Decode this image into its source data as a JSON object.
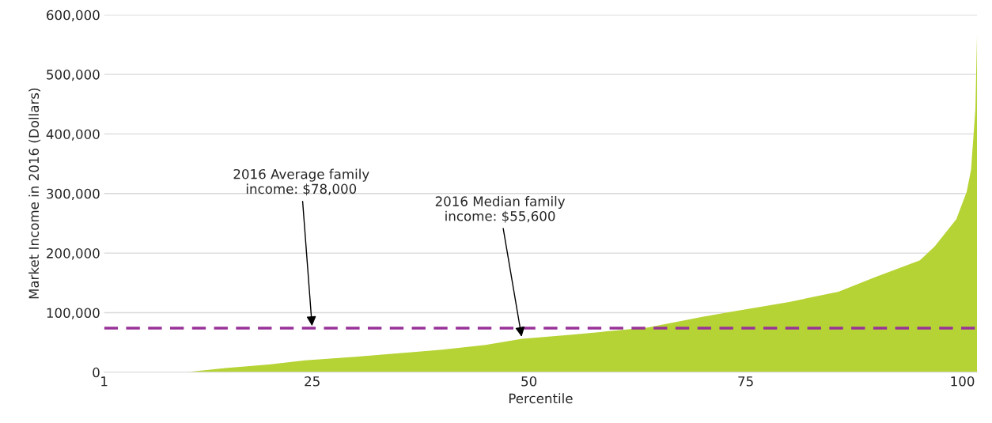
{
  "chart_data": {
    "type": "area",
    "xlabel": "Percentile",
    "ylabel": "Market Income in 2016 (Dollars)",
    "x": [
      1,
      10.4,
      15,
      20,
      24.2,
      30,
      35,
      40,
      45,
      49.2,
      55,
      60,
      63.7,
      70,
      73.1,
      80,
      85.7,
      90,
      95.1,
      96.8,
      99.3,
      100.5,
      101,
      101.5,
      101.7
    ],
    "series": [
      {
        "color": "#b5d334",
        "values": [
          0,
          0,
          7000,
          13000,
          20000,
          26000,
          32000,
          38000,
          46000,
          56000,
          63000,
          70000,
          75000,
          93000,
          101000,
          118000,
          135000,
          160000,
          188000,
          211000,
          257000,
          303000,
          340000,
          441000,
          575000
        ]
      }
    ],
    "xlim": [
      1,
      101.7
    ],
    "xticks": [
      1,
      25,
      50,
      75,
      100
    ],
    "ylim": [
      0,
      600000
    ],
    "yticks": [
      {
        "value": 0,
        "label": "0"
      },
      {
        "value": 100000,
        "label": "100,000"
      },
      {
        "value": 200000,
        "label": "200,000"
      },
      {
        "value": 300000,
        "label": "300,000"
      },
      {
        "value": 400000,
        "label": "400,000"
      },
      {
        "value": 500000,
        "label": "500,000"
      },
      {
        "value": 600000,
        "label": "600,000"
      }
    ],
    "grid": "y",
    "ref_lines": [
      {
        "axis": "y",
        "value": 74000,
        "label": null,
        "color": "#993399",
        "line_style": "dashed"
      }
    ],
    "annotations": [
      {
        "text": "2016 Average family\nincome: $78,000",
        "x": 25,
        "y": 74000
      },
      {
        "text": "2016 Median family\nincome: $55,600",
        "x": 49.2,
        "y": 56000
      }
    ]
  }
}
